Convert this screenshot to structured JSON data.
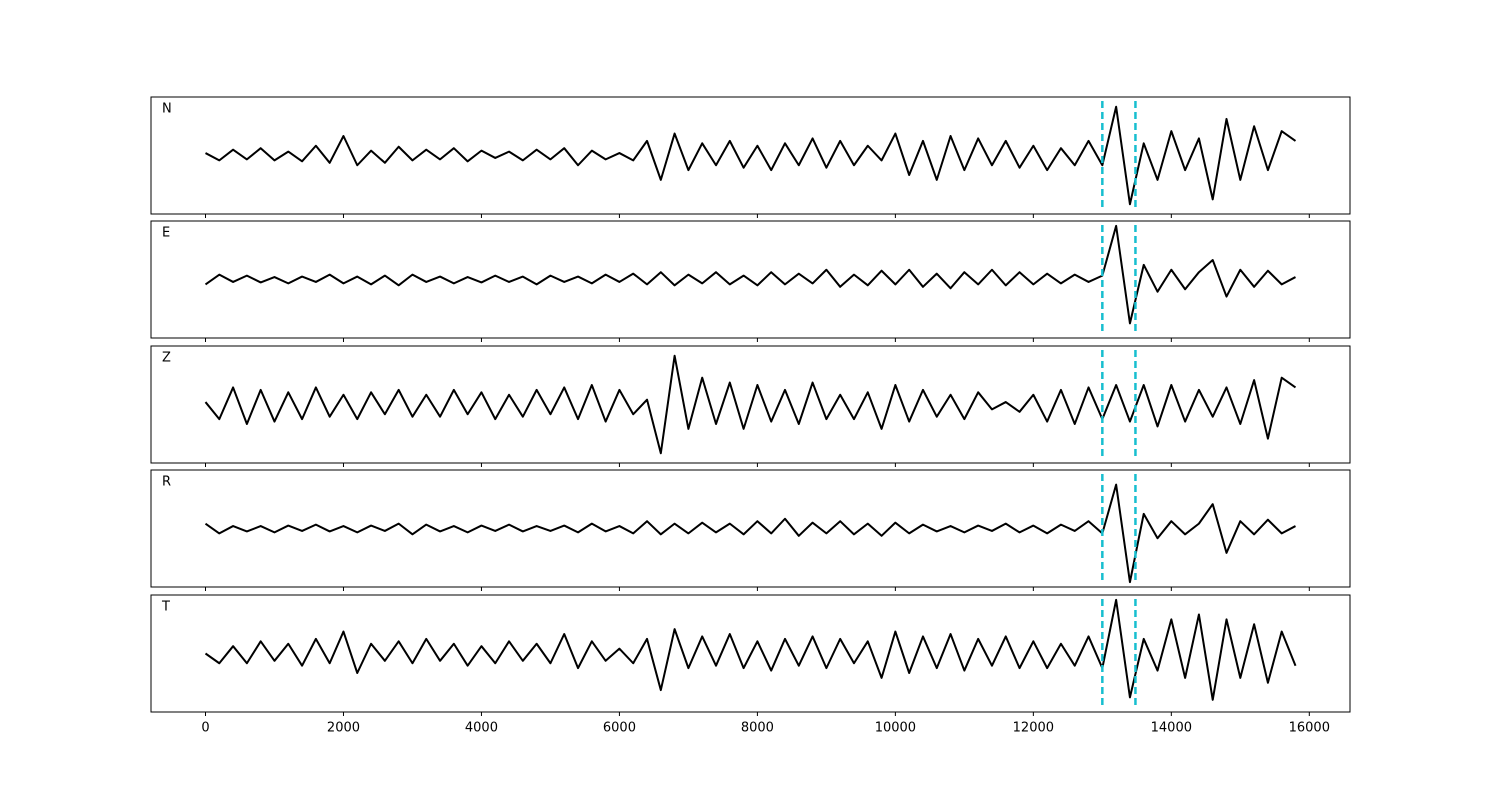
{
  "chart_data": {
    "type": "line",
    "x": [
      0,
      200,
      400,
      600,
      800,
      1000,
      1200,
      1400,
      1600,
      1800,
      2000,
      2200,
      2400,
      2600,
      2800,
      3000,
      3200,
      3400,
      3600,
      3800,
      4000,
      4200,
      4400,
      4600,
      4800,
      5000,
      5200,
      5400,
      5600,
      5800,
      6000,
      6200,
      6400,
      6600,
      6800,
      7000,
      7200,
      7400,
      7600,
      7800,
      8000,
      8200,
      8400,
      8600,
      8800,
      9000,
      9200,
      9400,
      9600,
      9800,
      10000,
      10200,
      10400,
      10600,
      10800,
      11000,
      11200,
      11400,
      11600,
      11800,
      12000,
      12200,
      12400,
      12600,
      12800,
      13000,
      13200,
      13400,
      13600,
      13800,
      14000,
      14200,
      14400,
      14600,
      14800,
      15000,
      15200,
      15400,
      15600,
      15800
    ],
    "series": [
      {
        "name": "N",
        "color": "#000000",
        "values": [
          0.05,
          -0.1,
          0.12,
          -0.08,
          0.15,
          -0.1,
          0.08,
          -0.12,
          0.2,
          -0.15,
          0.4,
          -0.2,
          0.1,
          -0.15,
          0.18,
          -0.1,
          0.12,
          -0.08,
          0.15,
          -0.12,
          0.1,
          -0.05,
          0.08,
          -0.1,
          0.12,
          -0.08,
          0.15,
          -0.2,
          0.1,
          -0.08,
          0.05,
          -0.1,
          0.3,
          -0.5,
          0.45,
          -0.3,
          0.25,
          -0.2,
          0.3,
          -0.25,
          0.2,
          -0.3,
          0.25,
          -0.2,
          0.35,
          -0.25,
          0.3,
          -0.2,
          0.2,
          -0.1,
          0.45,
          -0.4,
          0.3,
          -0.5,
          0.4,
          -0.3,
          0.35,
          -0.2,
          0.3,
          -0.25,
          0.2,
          -0.3,
          0.15,
          -0.2,
          0.3,
          -0.2,
          1.0,
          -1.0,
          0.25,
          -0.5,
          0.5,
          -0.3,
          0.35,
          -0.9,
          0.75,
          -0.5,
          0.6,
          -0.3,
          0.5,
          0.3
        ]
      },
      {
        "name": "E",
        "color": "#000000",
        "values": [
          -0.1,
          0.1,
          -0.05,
          0.08,
          -0.06,
          0.05,
          -0.08,
          0.06,
          -0.05,
          0.1,
          -0.08,
          0.06,
          -0.1,
          0.08,
          -0.12,
          0.1,
          -0.05,
          0.06,
          -0.08,
          0.05,
          -0.06,
          0.08,
          -0.05,
          0.06,
          -0.1,
          0.08,
          -0.05,
          0.06,
          -0.08,
          0.1,
          -0.05,
          0.12,
          -0.1,
          0.15,
          -0.12,
          0.1,
          -0.08,
          0.15,
          -0.1,
          0.08,
          -0.12,
          0.15,
          -0.1,
          0.12,
          -0.08,
          0.2,
          -0.15,
          0.1,
          -0.12,
          0.18,
          -0.1,
          0.2,
          -0.15,
          0.12,
          -0.18,
          0.15,
          -0.1,
          0.2,
          -0.12,
          0.15,
          -0.1,
          0.12,
          -0.08,
          0.1,
          -0.05,
          0.08,
          1.1,
          -0.9,
          0.3,
          -0.25,
          0.2,
          -0.2,
          0.15,
          0.4,
          -0.35,
          0.2,
          -0.15,
          0.18,
          -0.1,
          0.05
        ]
      },
      {
        "name": "Z",
        "color": "#000000",
        "values": [
          0.05,
          -0.3,
          0.35,
          -0.4,
          0.3,
          -0.35,
          0.25,
          -0.3,
          0.35,
          -0.25,
          0.2,
          -0.3,
          0.25,
          -0.2,
          0.3,
          -0.25,
          0.2,
          -0.25,
          0.3,
          -0.2,
          0.25,
          -0.3,
          0.2,
          -0.25,
          0.3,
          -0.2,
          0.35,
          -0.3,
          0.4,
          -0.35,
          0.3,
          -0.2,
          0.1,
          -1.0,
          1.0,
          -0.5,
          0.55,
          -0.4,
          0.45,
          -0.5,
          0.4,
          -0.35,
          0.3,
          -0.4,
          0.45,
          -0.3,
          0.2,
          -0.3,
          0.25,
          -0.5,
          0.4,
          -0.35,
          0.3,
          -0.25,
          0.2,
          -0.3,
          0.25,
          -0.1,
          0.05,
          -0.15,
          0.2,
          -0.35,
          0.3,
          -0.4,
          0.35,
          -0.3,
          0.4,
          -0.35,
          0.4,
          -0.45,
          0.4,
          -0.35,
          0.3,
          -0.25,
          0.35,
          -0.4,
          0.5,
          -0.7,
          0.55,
          0.35
        ]
      },
      {
        "name": "R",
        "color": "#000000",
        "values": [
          0.1,
          -0.1,
          0.05,
          -0.06,
          0.05,
          -0.08,
          0.06,
          -0.05,
          0.08,
          -0.06,
          0.05,
          -0.08,
          0.06,
          -0.05,
          0.1,
          -0.12,
          0.08,
          -0.06,
          0.05,
          -0.08,
          0.06,
          -0.05,
          0.08,
          -0.06,
          0.05,
          -0.05,
          0.06,
          -0.08,
          0.1,
          -0.06,
          0.05,
          -0.1,
          0.15,
          -0.12,
          0.1,
          -0.1,
          0.12,
          -0.08,
          0.1,
          -0.12,
          0.15,
          -0.1,
          0.2,
          -0.15,
          0.12,
          -0.1,
          0.15,
          -0.12,
          0.1,
          -0.15,
          0.12,
          -0.1,
          0.08,
          -0.06,
          0.05,
          -0.08,
          0.06,
          -0.05,
          0.1,
          -0.08,
          0.06,
          -0.1,
          0.08,
          -0.05,
          0.15,
          -0.1,
          0.9,
          -1.1,
          0.3,
          -0.2,
          0.15,
          -0.12,
          0.1,
          0.5,
          -0.5,
          0.15,
          -0.12,
          0.18,
          -0.1,
          0.05
        ]
      },
      {
        "name": "T",
        "color": "#000000",
        "values": [
          0.0,
          -0.2,
          0.15,
          -0.2,
          0.25,
          -0.15,
          0.2,
          -0.25,
          0.3,
          -0.2,
          0.45,
          -0.4,
          0.2,
          -0.15,
          0.25,
          -0.2,
          0.3,
          -0.15,
          0.2,
          -0.25,
          0.15,
          -0.2,
          0.25,
          -0.15,
          0.2,
          -0.2,
          0.4,
          -0.3,
          0.25,
          -0.15,
          0.1,
          -0.2,
          0.3,
          -0.75,
          0.5,
          -0.3,
          0.35,
          -0.25,
          0.4,
          -0.3,
          0.25,
          -0.35,
          0.3,
          -0.25,
          0.35,
          -0.3,
          0.3,
          -0.2,
          0.25,
          -0.5,
          0.45,
          -0.4,
          0.35,
          -0.3,
          0.4,
          -0.35,
          0.3,
          -0.25,
          0.35,
          -0.3,
          0.25,
          -0.3,
          0.2,
          -0.25,
          0.35,
          -0.3,
          1.1,
          -0.9,
          0.3,
          -0.35,
          0.7,
          -0.5,
          0.8,
          -0.95,
          0.7,
          -0.5,
          0.6,
          -0.6,
          0.45,
          -0.25
        ]
      }
    ],
    "xlim": [
      -790,
      16590
    ],
    "xticks": [
      0,
      2000,
      4000,
      6000,
      8000,
      10000,
      12000,
      14000,
      16000
    ],
    "ylim": [
      -1.2,
      1.2
    ],
    "markers": [
      13000,
      13480
    ],
    "marker_color": "#17becf"
  }
}
